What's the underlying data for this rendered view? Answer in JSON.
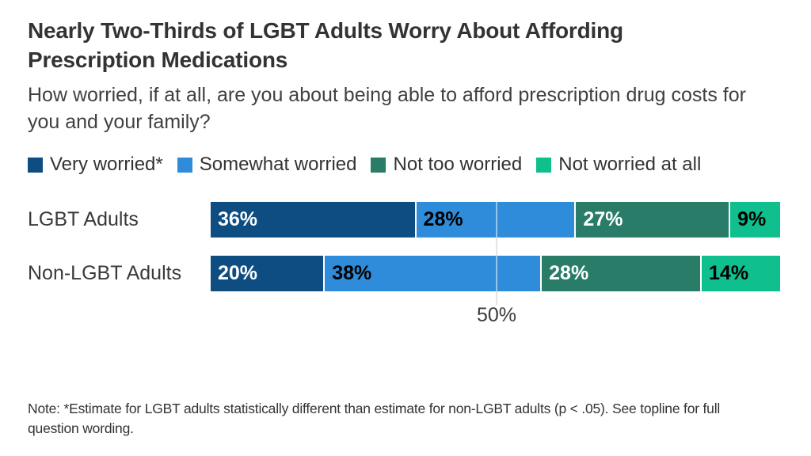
{
  "title": "Nearly Two-Thirds of LGBT Adults Worry About Affording Prescription Medications",
  "subtitle": "How worried, if at all, are you about being able to afford prescription drug costs for you and your family?",
  "note": "Note: *Estimate for LGBT adults statistically different than estimate for non-LGBT adults (p < .05). See topline for full question wording.",
  "chart_data": {
    "type": "bar",
    "orientation": "horizontal-stacked",
    "categories": [
      "LGBT Adults",
      "Non-LGBT Adults"
    ],
    "series": [
      {
        "name": "Very worried*",
        "color": "#0e4d82",
        "text_color": "#ffffff",
        "values": [
          36,
          20
        ]
      },
      {
        "name": "Somewhat worried",
        "color": "#2e8cda",
        "text_color": "#000000",
        "values": [
          28,
          38
        ]
      },
      {
        "name": "Not too worried",
        "color": "#287c68",
        "text_color": "#ffffff",
        "values": [
          27,
          28
        ]
      },
      {
        "name": "Not worried at all",
        "color": "#0fbf8e",
        "text_color": "#000000",
        "values": [
          9,
          14
        ]
      }
    ],
    "xlim": [
      0,
      100
    ],
    "value_suffix": "%",
    "gridline_at": 50,
    "tick_label": "50%",
    "legend_position": "top",
    "grid": "single-vertical-line-at-50"
  }
}
